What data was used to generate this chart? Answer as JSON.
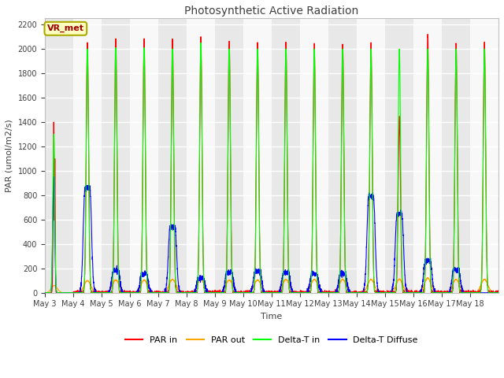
{
  "title": "Photosynthetic Active Radiation",
  "ylabel": "PAR (umol/m2/s)",
  "xlabel": "Time",
  "legend_labels": [
    "PAR in",
    "PAR out",
    "Delta-T in",
    "Delta-T Diffuse"
  ],
  "legend_colors": [
    "red",
    "orange",
    "lime",
    "blue"
  ],
  "annotation_text": "VR_met",
  "annotation_box_color": "#ffffc0",
  "annotation_border_color": "#aaaa00",
  "annotation_text_color": "#990000",
  "ylim": [
    0,
    2250
  ],
  "yticks": [
    0,
    200,
    400,
    600,
    800,
    1000,
    1200,
    1400,
    1600,
    1800,
    2000,
    2200
  ],
  "bg_color": "#ffffff",
  "plot_bg_color": "#f0f0f0",
  "n_days": 16,
  "start_day": 3,
  "points_per_day": 288,
  "day_peaks_par_in": [
    1400,
    2050,
    2080,
    2070,
    2070,
    2090,
    2060,
    2050,
    2050,
    2050,
    2050,
    2050,
    1430,
    2120,
    2040,
    2060
  ],
  "day_peaks_par_out": [
    60,
    100,
    105,
    105,
    110,
    110,
    105,
    105,
    110,
    110,
    110,
    110,
    110,
    120,
    110,
    110
  ],
  "day_peaks_delta_t_in": [
    1330,
    2000,
    2010,
    2010,
    2000,
    2050,
    2000,
    2000,
    2000,
    2000,
    2000,
    2000,
    2000,
    2000,
    2000,
    2000
  ],
  "day_peaks_delta_t_diff": [
    950,
    860,
    180,
    155,
    540,
    120,
    165,
    175,
    165,
    155,
    155,
    790,
    650,
    260,
    190,
    0
  ],
  "band_colors": [
    "#e8e8e8",
    "#f8f8f8"
  ]
}
